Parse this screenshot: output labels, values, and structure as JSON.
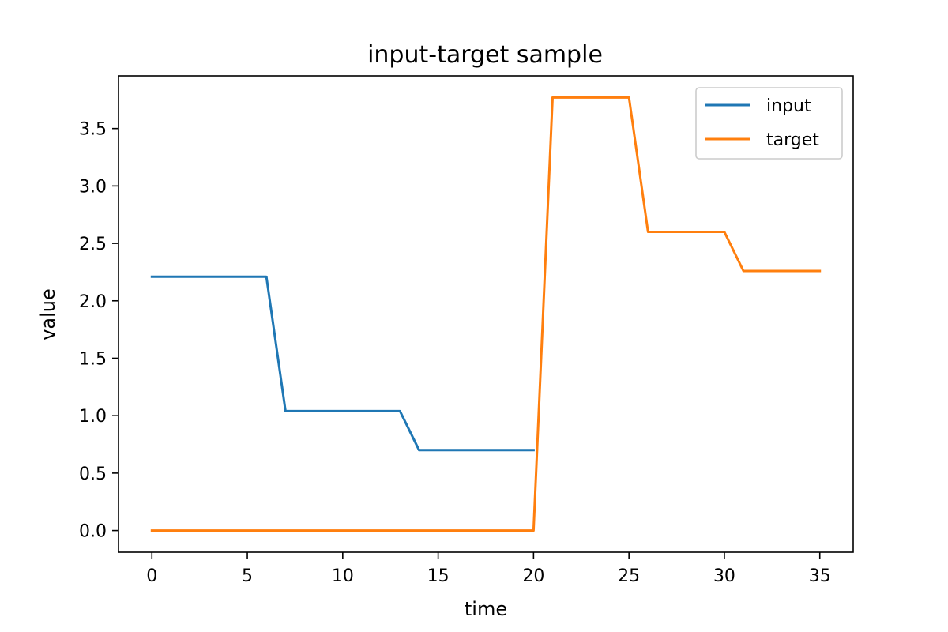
{
  "chart_data": {
    "type": "line",
    "title": "input-target sample",
    "xlabel": "time",
    "ylabel": "value",
    "xlim": [
      -1.75,
      36.75
    ],
    "ylim": [
      -0.1885,
      3.9585
    ],
    "xticks": [
      0,
      5,
      10,
      15,
      20,
      25,
      30,
      35
    ],
    "xtick_labels": [
      "0",
      "5",
      "10",
      "15",
      "20",
      "25",
      "30",
      "35"
    ],
    "yticks": [
      0.0,
      0.5,
      1.0,
      1.5,
      2.0,
      2.5,
      3.0,
      3.5
    ],
    "ytick_labels": [
      "0.0",
      "0.5",
      "1.0",
      "1.5",
      "2.0",
      "2.5",
      "3.0",
      "3.5"
    ],
    "grid": false,
    "legend_position": "top-right",
    "series": [
      {
        "name": "input",
        "color": "#1f77b4",
        "x": [
          0,
          1,
          2,
          3,
          4,
          5,
          6,
          7,
          8,
          9,
          10,
          11,
          12,
          13,
          14,
          15,
          16,
          17,
          18,
          19,
          20
        ],
        "y": [
          2.21,
          2.21,
          2.21,
          2.21,
          2.21,
          2.21,
          2.21,
          1.04,
          1.04,
          1.04,
          1.04,
          1.04,
          1.04,
          1.04,
          0.7,
          0.7,
          0.7,
          0.7,
          0.7,
          0.7,
          0.7
        ]
      },
      {
        "name": "target",
        "color": "#ff7f0e",
        "x": [
          0,
          1,
          2,
          3,
          4,
          5,
          6,
          7,
          8,
          9,
          10,
          11,
          12,
          13,
          14,
          15,
          16,
          17,
          18,
          19,
          20,
          21,
          22,
          23,
          24,
          25,
          26,
          27,
          28,
          29,
          30,
          31,
          32,
          33,
          34,
          35
        ],
        "y": [
          0,
          0,
          0,
          0,
          0,
          0,
          0,
          0,
          0,
          0,
          0,
          0,
          0,
          0,
          0,
          0,
          0,
          0,
          0,
          0,
          0,
          3.77,
          3.77,
          3.77,
          3.77,
          3.77,
          2.6,
          2.6,
          2.6,
          2.6,
          2.6,
          2.26,
          2.26,
          2.26,
          2.26,
          2.26
        ]
      }
    ]
  }
}
